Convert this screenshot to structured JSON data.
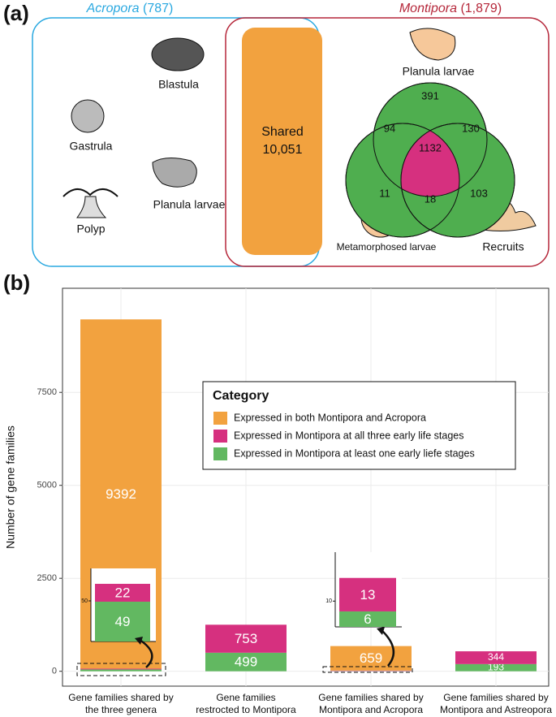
{
  "panel_a": {
    "label": "(a)",
    "acropora": {
      "name": "Acropora",
      "count": "(787)",
      "stages": [
        "Blastula",
        "Gastrula",
        "Planula larvae",
        "Polyp"
      ]
    },
    "montipora": {
      "name": "Montipora",
      "count": "(1,879)",
      "stages": [
        "Planula larvae",
        "Metamorphosed larvae",
        "Recruits"
      ],
      "venn": [
        391,
        94,
        130,
        1132,
        11,
        18,
        103
      ]
    },
    "shared": {
      "label": "Shared",
      "count": "10,051"
    }
  },
  "chart_data": {
    "type": "bar",
    "stacked": true,
    "label": "(b)",
    "ylabel": "Number of gene families",
    "categories": [
      [
        "Gene families shared by",
        "the three genera"
      ],
      [
        "Gene families",
        "restrocted to Montipora"
      ],
      [
        "Gene families shared by",
        "Montipora and Acropora"
      ],
      [
        "Gene families shared by",
        "Montipora and Astreopora"
      ]
    ],
    "series": [
      {
        "name": "Expressed in both Montipora and Acropora",
        "color": "#f2a23f",
        "values": [
          9392,
          null,
          659,
          null
        ]
      },
      {
        "name": "Expressed in Montipora at all three early life stages",
        "color": "#d6307f",
        "values": [
          22,
          753,
          13,
          344
        ]
      },
      {
        "name": "Expressed in Montipora at least one early liefe stages",
        "color": "#62b861",
        "values": [
          49,
          499,
          6,
          193
        ]
      }
    ],
    "ylim": [
      -400,
      10300
    ],
    "yticks": [
      0,
      2500,
      5000,
      7500
    ],
    "grid": true,
    "legend": {
      "title": "Category",
      "position": "center"
    },
    "insets": [
      {
        "ylim": [
          0,
          90
        ],
        "yticks": [
          50
        ]
      },
      {
        "ylim": [
          0,
          29
        ],
        "yticks": [
          10
        ]
      }
    ]
  }
}
